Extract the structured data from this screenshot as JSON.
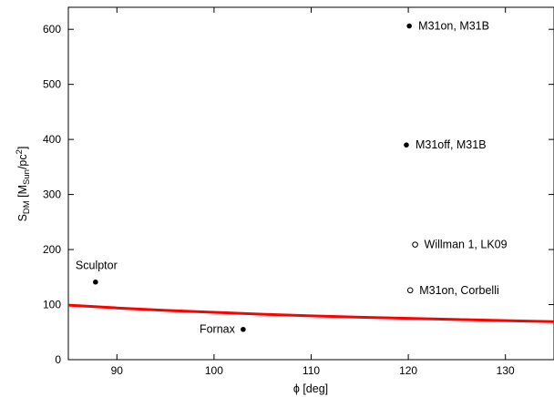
{
  "chart_data": {
    "type": "scatter",
    "title": "",
    "xlabel": "ϕ [deg]",
    "ylabel": {
      "base": "S",
      "base_sub": "DM",
      "unit_open": " [M",
      "unit_sub": "Sun",
      "unit_mid": "/pc",
      "unit_sup": "2",
      "unit_close": "]"
    },
    "xlim": [
      85,
      135
    ],
    "ylim": [
      0,
      640
    ],
    "xticks": [
      90,
      100,
      110,
      120,
      130
    ],
    "yticks": [
      0,
      100,
      200,
      300,
      400,
      500,
      600
    ],
    "grid": false,
    "points": [
      {
        "label": "Sculptor",
        "x": 87.8,
        "y": 141,
        "marker": "filled",
        "label_pos": "above"
      },
      {
        "label": "Fornax",
        "x": 103.0,
        "y": 55,
        "marker": "filled",
        "label_pos": "left"
      },
      {
        "label": "M31on, M31B",
        "x": 120.1,
        "y": 606,
        "marker": "filled",
        "label_pos": "right"
      },
      {
        "label": "M31off, M31B",
        "x": 119.8,
        "y": 390,
        "marker": "filled",
        "label_pos": "right"
      },
      {
        "label": "Willman 1, LK09",
        "x": 120.7,
        "y": 209,
        "marker": "open",
        "label_pos": "right"
      },
      {
        "label": "M31on, Corbelli",
        "x": 120.2,
        "y": 126,
        "marker": "open",
        "label_pos": "right"
      }
    ],
    "curve": {
      "color": "#ff0000",
      "x": [
        85,
        90,
        95,
        100,
        105,
        110,
        115,
        120,
        125,
        130,
        135
      ],
      "y": [
        99,
        94,
        89.5,
        86,
        82.5,
        79.5,
        77,
        75,
        73,
        71,
        69
      ]
    }
  }
}
